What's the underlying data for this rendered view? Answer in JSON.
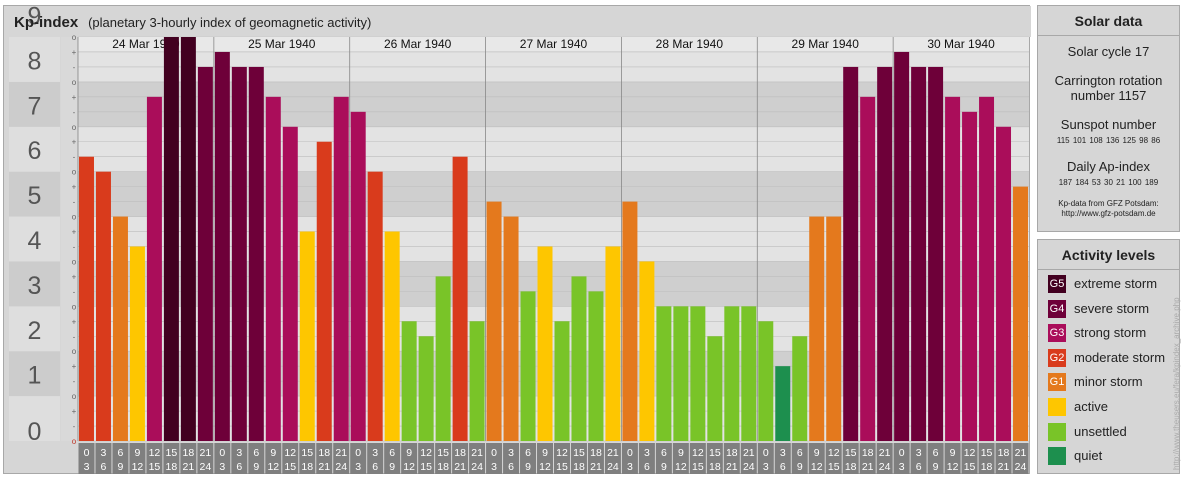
{
  "header": {
    "title": "Kp-index",
    "subtitle": "(planetary 3-hourly index of geomagnetic activity)"
  },
  "chart_data": {
    "type": "bar",
    "ylim": [
      0,
      9
    ],
    "y_ticks": [
      "0",
      "1",
      "2",
      "3",
      "4",
      "5",
      "6",
      "7",
      "8",
      "9"
    ],
    "minor_marks": [
      "+",
      "o",
      "-"
    ],
    "days": [
      "24 Mar 1940",
      "25 Mar 1940",
      "26 Mar 1940",
      "27 Mar 1940",
      "28 Mar 1940",
      "29 Mar 1940",
      "30 Mar 1940"
    ],
    "interval_labels": [
      [
        "0",
        "3"
      ],
      [
        "3",
        "6"
      ],
      [
        "6",
        "9"
      ],
      [
        "9",
        "12"
      ],
      [
        "12",
        "15"
      ],
      [
        "15",
        "18"
      ],
      [
        "18",
        "21"
      ],
      [
        "21",
        "24"
      ]
    ],
    "values": [
      [
        6.333,
        6.0,
        5.0,
        4.333,
        7.667,
        9.0,
        9.0,
        8.333
      ],
      [
        8.667,
        8.333,
        8.333,
        7.667,
        7.0,
        4.667,
        6.667,
        7.667
      ],
      [
        7.333,
        6.0,
        4.667,
        2.667,
        2.333,
        3.667,
        6.333,
        2.667
      ],
      [
        5.333,
        5.0,
        3.333,
        4.333,
        2.667,
        3.667,
        3.333,
        4.333
      ],
      [
        5.333,
        4.0,
        3.0,
        3.0,
        3.0,
        2.333,
        3.0,
        3.0
      ],
      [
        2.667,
        1.667,
        2.333,
        5.0,
        5.0,
        8.333,
        7.667,
        8.333
      ],
      [
        8.667,
        8.333,
        8.333,
        7.667,
        7.333,
        7.667,
        7.0,
        5.667
      ]
    ],
    "level_colors": {
      "quiet": "#1d8f4e",
      "unsettled": "#79c428",
      "active": "#fec600",
      "G1": "#e4791d",
      "G2": "#d93b1c",
      "G3": "#aa0d5a",
      "G4": "#6e0039",
      "G5": "#420020"
    }
  },
  "solar": {
    "title": "Solar data",
    "cycle": "Solar cycle 17",
    "carrington_1": "Carrington rotation",
    "carrington_2": "number 1157",
    "sunspot_title": "Sunspot number",
    "sunspot_values": "115 101 108 136 125 98 86",
    "ap_title": "Daily Ap-index",
    "ap_values": "187 184 53 30 21 100 189",
    "source_1": "Kp-data from GFZ Potsdam:",
    "source_2": "http://www.gfz-potsdam.de"
  },
  "activity": {
    "title": "Activity levels",
    "levels": [
      {
        "code": "G5",
        "label": "extreme storm",
        "color": "#420020"
      },
      {
        "code": "G4",
        "label": "severe storm",
        "color": "#6e0039"
      },
      {
        "code": "G3",
        "label": "strong storm",
        "color": "#aa0d5a"
      },
      {
        "code": "G2",
        "label": "moderate storm",
        "color": "#d93b1c"
      },
      {
        "code": "G1",
        "label": "minor storm",
        "color": "#e4791d"
      },
      {
        "code": "",
        "label": "active",
        "color": "#fec600"
      },
      {
        "code": "",
        "label": "unsettled",
        "color": "#79c428"
      },
      {
        "code": "",
        "label": "quiet",
        "color": "#1d8f4e"
      }
    ]
  },
  "credit": "http://www.theusers.eu/fera/kpindex_archive.php"
}
